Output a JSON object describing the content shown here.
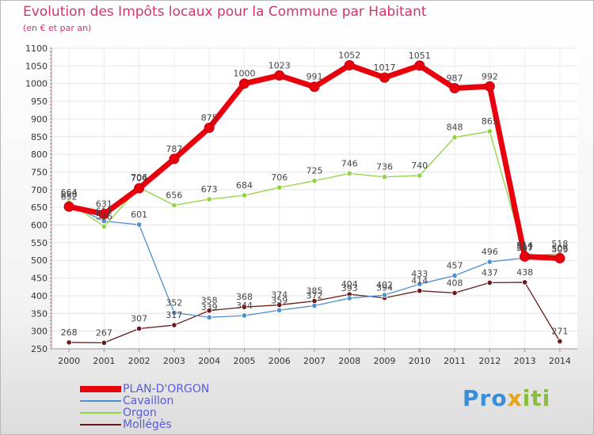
{
  "chart_data": {
    "type": "line",
    "title": "Evolution des Impôts locaux pour la Commune par Habitant",
    "subtitle": "(en € et par an)",
    "xlabel": "",
    "ylabel": "",
    "categories": [
      "2000",
      "2001",
      "2002",
      "2003",
      "2004",
      "2005",
      "2006",
      "2007",
      "2008",
      "2009",
      "2010",
      "2011",
      "2012",
      "2013",
      "2014"
    ],
    "ylim": [
      250,
      1100
    ],
    "yticks": [
      250,
      300,
      350,
      400,
      450,
      500,
      550,
      600,
      650,
      700,
      750,
      800,
      850,
      900,
      950,
      1000,
      1050,
      1100
    ],
    "grid": true,
    "series": [
      {
        "name": "PLAN-D'ORGON",
        "color": "#e8000d",
        "values": [
          652,
          631,
          704,
          787,
          875,
          1000,
          1023,
          991,
          1052,
          1017,
          1051,
          987,
          992,
          511,
          506
        ],
        "labels": [
          "652",
          "631",
          "704",
          "787",
          "875",
          "1000",
          "1023",
          "991",
          "1052",
          "1017",
          "1051",
          "987",
          "992",
          "511",
          "506"
        ]
      },
      {
        "name": "Cavaillon",
        "color": "#4e8fd0",
        "values": [
          658,
          611,
          601,
          352,
          339,
          344,
          359,
          372,
          393,
          402,
          433,
          457,
          496,
          507,
          503
        ],
        "labels": [
          "658",
          "611",
          "601",
          "352",
          "339",
          "344",
          "359",
          "372",
          "393",
          "402",
          "433",
          "457",
          "496",
          "507",
          "503"
        ]
      },
      {
        "name": "Orgon",
        "color": "#8fd33f",
        "values": [
          664,
          596,
          706,
          656,
          673,
          684,
          706,
          725,
          746,
          736,
          740,
          848,
          865,
          514,
          518
        ],
        "labels": [
          "664",
          "596",
          "706",
          "656",
          "673",
          "684",
          "706",
          "725",
          "746",
          "736",
          "740",
          "848",
          "865",
          "514",
          "518"
        ]
      },
      {
        "name": "Mollégès",
        "color": "#6b1a1a",
        "values": [
          268,
          267,
          307,
          317,
          358,
          368,
          374,
          385,
          404,
          394,
          414,
          408,
          437,
          438,
          271
        ],
        "labels": [
          "268",
          "267",
          "307",
          "317",
          "358",
          "368",
          "374",
          "385",
          "404",
          "394",
          "414",
          "408",
          "437",
          "438",
          "271"
        ]
      }
    ]
  },
  "logo": {
    "part1": "Pro",
    "part2": "x",
    "part3": "iti"
  }
}
